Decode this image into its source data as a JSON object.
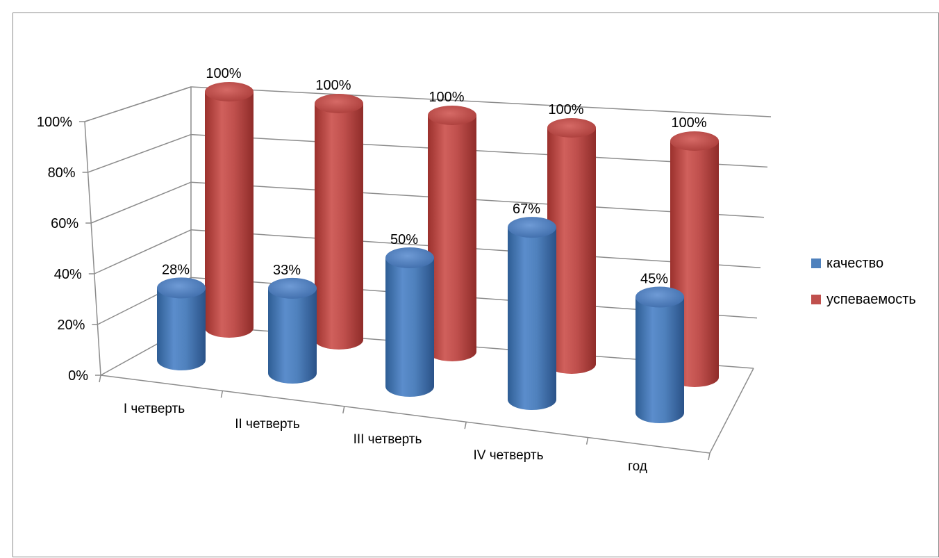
{
  "chart_data": {
    "type": "bar",
    "variant": "3d-cylinder",
    "categories": [
      "I четверть",
      "II четверть",
      "III четверть",
      "IV четверть",
      "год"
    ],
    "series": [
      {
        "name": "качество",
        "color": "#4f81bd",
        "values": [
          28,
          33,
          50,
          67,
          45
        ],
        "labels": [
          "28%",
          "33%",
          "50%",
          "67%",
          "45%"
        ]
      },
      {
        "name": "успеваемость",
        "color": "#c0504d",
        "values": [
          100,
          100,
          100,
          100,
          100
        ],
        "labels": [
          "100%",
          "100%",
          "100%",
          "100%",
          "100%"
        ]
      }
    ],
    "yticks": [
      "0%",
      "20%",
      "40%",
      "60%",
      "80%",
      "100%"
    ],
    "ylim": [
      0,
      100
    ],
    "grid": true,
    "legend": "right"
  }
}
